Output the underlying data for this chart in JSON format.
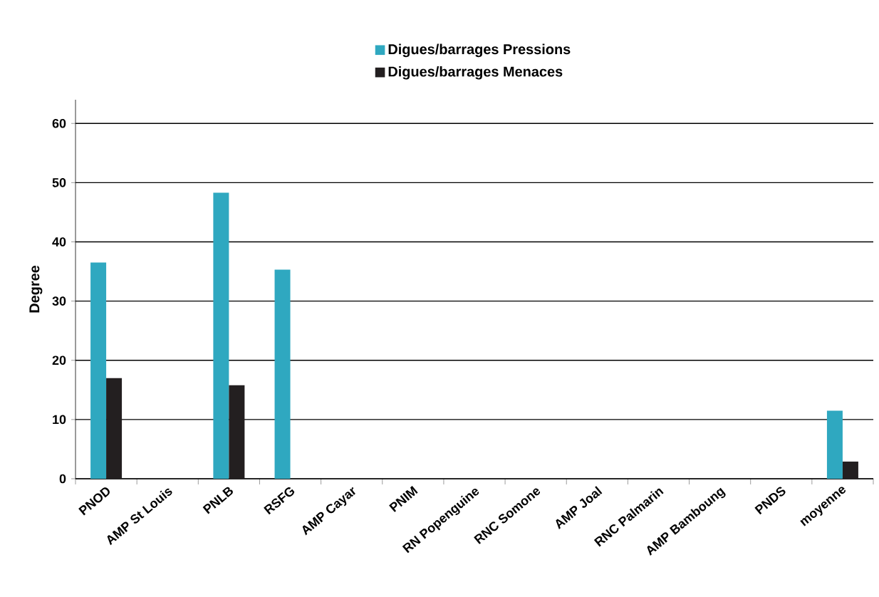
{
  "chart_data": {
    "type": "bar",
    "ylabel": "Degree",
    "categories": [
      "PNOD",
      "AMP St Louis",
      "PNLB",
      "RSFG",
      "AMP Cayar",
      "PNIM",
      "RN Popenguine",
      "RNC Somone",
      "AMP Joal",
      "RNC Palmarin",
      "AMP Bamboung",
      "PNDS",
      "moyenne"
    ],
    "series": [
      {
        "name": "Digues/barrages Pressions",
        "color": "#2fa8c0",
        "values": [
          36.5,
          0,
          48.3,
          35.3,
          0,
          0,
          0,
          0,
          0,
          0,
          0,
          0,
          11.5
        ]
      },
      {
        "name": "Digues/barrages Menaces",
        "color": "#231f20",
        "values": [
          17,
          0,
          15.8,
          0,
          0,
          0,
          0,
          0,
          0,
          0,
          0,
          0,
          2.9
        ]
      }
    ],
    "ylim": [
      0,
      64
    ],
    "yticks": [
      0,
      10,
      20,
      30,
      40,
      50,
      60
    ],
    "grid": "y",
    "legend": "top"
  }
}
